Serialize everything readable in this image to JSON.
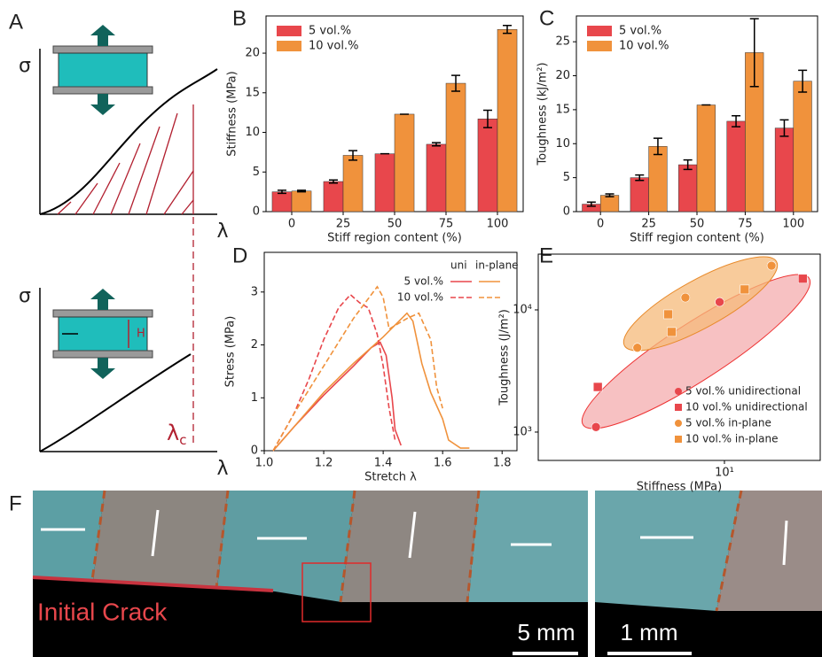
{
  "panel_labels": [
    "A",
    "B",
    "C",
    "D",
    "E",
    "F"
  ],
  "schematic": {
    "stress_symbol": "σ",
    "stretch_symbol": "λ",
    "critical_stretch": {
      "symbol": "λ",
      "subscript": "c"
    },
    "height_label": "H"
  },
  "photo": {
    "annotation": "Initial Crack",
    "scale_bars": [
      "5 mm",
      "1 mm"
    ]
  },
  "chart_data": [
    {
      "type": "bar",
      "xlabel": "Stiff region content (%)",
      "ylabel": "Stiffness (MPa)",
      "categories": [
        "0",
        "25",
        "50",
        "75",
        "100"
      ],
      "series": [
        {
          "name": "5 vol.%",
          "color": "#e8474c",
          "values": [
            2.5,
            3.8,
            7.3,
            8.5,
            11.7
          ],
          "errors": [
            0.2,
            0.2,
            0,
            0.2,
            1.1
          ]
        },
        {
          "name": "10 vol.%",
          "color": "#f0923c",
          "values": [
            2.6,
            7.1,
            12.3,
            16.2,
            23.0
          ],
          "errors": [
            0.1,
            0.6,
            0,
            1.0,
            0.5
          ]
        }
      ],
      "ylim": [
        0,
        24.7
      ],
      "yticks": [
        0,
        5,
        10,
        15,
        20
      ],
      "legend": "upper left"
    },
    {
      "type": "bar",
      "xlabel": "Stiff region content (%)",
      "ylabel": "Toughness (kJ/m²)",
      "categories": [
        "0",
        "25",
        "50",
        "75",
        "100"
      ],
      "series": [
        {
          "name": "5 vol.%",
          "color": "#e8474c",
          "values": [
            1.1,
            5.0,
            6.9,
            13.3,
            12.3
          ],
          "errors": [
            0.3,
            0.4,
            0.7,
            0.8,
            1.2
          ]
        },
        {
          "name": "10 vol.%",
          "color": "#f0923c",
          "values": [
            2.4,
            9.6,
            15.7,
            23.4,
            19.2
          ],
          "errors": [
            0.2,
            1.2,
            0,
            5.0,
            1.6
          ]
        }
      ],
      "ylim": [
        0,
        28.8
      ],
      "yticks": [
        0,
        5,
        10,
        15,
        20,
        25
      ],
      "legend": "upper left"
    },
    {
      "type": "line",
      "xlabel": "Stretch λ",
      "ylabel": "Stress (MPa)",
      "xlim": [
        1.0,
        1.85
      ],
      "ylim": [
        0,
        3.75
      ],
      "xticks": [
        {
          "value": 1,
          "label": "1.0"
        },
        1.2,
        1.4,
        1.6,
        1.8
      ],
      "yticks": [
        0,
        1,
        2,
        3
      ],
      "legend_columns": [
        "uni",
        "in-plane"
      ],
      "legend_rows": [
        "5 vol.%",
        "10 vol.%"
      ],
      "series": [
        {
          "color": "#e8474c",
          "dashed": false,
          "x": [
            1.03,
            1.1,
            1.2,
            1.3,
            1.36,
            1.39,
            1.41,
            1.43,
            1.44,
            1.46
          ],
          "values": [
            0,
            0.45,
            1.05,
            1.6,
            1.95,
            2.05,
            1.8,
            1.0,
            0.4,
            0.1
          ]
        },
        {
          "color": "#f0923c",
          "dashed": false,
          "x": [
            1.03,
            1.1,
            1.2,
            1.3,
            1.4,
            1.48,
            1.5,
            1.53,
            1.56,
            1.6,
            1.62,
            1.66,
            1.69
          ],
          "values": [
            0,
            0.45,
            1.1,
            1.65,
            2.15,
            2.6,
            2.45,
            1.65,
            1.1,
            0.6,
            0.2,
            0.05,
            0.05
          ]
        },
        {
          "color": "#e8474c",
          "dashed": true,
          "x": [
            1.03,
            1.1,
            1.15,
            1.2,
            1.25,
            1.29,
            1.32,
            1.35,
            1.38,
            1.4,
            1.42,
            1.44
          ],
          "values": [
            0,
            0.7,
            1.35,
            2.1,
            2.7,
            2.95,
            2.8,
            2.7,
            2.2,
            1.6,
            0.8,
            0.2
          ]
        },
        {
          "color": "#f0923c",
          "dashed": true,
          "x": [
            1.03,
            1.1,
            1.2,
            1.3,
            1.38,
            1.4,
            1.42,
            1.48,
            1.52,
            1.56,
            1.58,
            1.6
          ],
          "values": [
            0,
            0.7,
            1.6,
            2.5,
            3.1,
            2.9,
            2.3,
            2.5,
            2.6,
            2.1,
            1.2,
            0.8
          ]
        }
      ]
    },
    {
      "type": "scatter",
      "xlabel": "Stiffness (MPa)",
      "ylabel": "Toughness (J/m²)",
      "log_scale": true,
      "xlim": [
        1.38,
        27.7
      ],
      "ylim": [
        586,
        28600
      ],
      "xticks": [
        {
          "value": 10,
          "label": "10¹"
        }
      ],
      "yticks": [
        {
          "value": 1000,
          "label": "10³"
        },
        {
          "value": 10000,
          "label": "10⁴"
        }
      ],
      "series": [
        {
          "name": "5 vol.% unidirectional",
          "color": "#e8474c",
          "marker": "circle",
          "x": [
            2.55,
            9.5
          ],
          "values": [
            1100,
            11600
          ]
        },
        {
          "name": "10 vol.% unidirectional",
          "color": "#e8474c",
          "marker": "square",
          "x": [
            2.6,
            23
          ],
          "values": [
            2340,
            18000
          ]
        },
        {
          "name": "5 vol.% in-plane",
          "color": "#f0923c",
          "marker": "circle",
          "x": [
            3.96,
            6.6,
            16.5
          ],
          "values": [
            4900,
            12600,
            23000
          ]
        },
        {
          "name": "10 vol.% in-plane",
          "color": "#f0923c",
          "marker": "square",
          "x": [
            5.7,
            5.5,
            12.4
          ],
          "values": [
            6600,
            9200,
            14700
          ]
        }
      ],
      "legend": "lower right"
    }
  ]
}
